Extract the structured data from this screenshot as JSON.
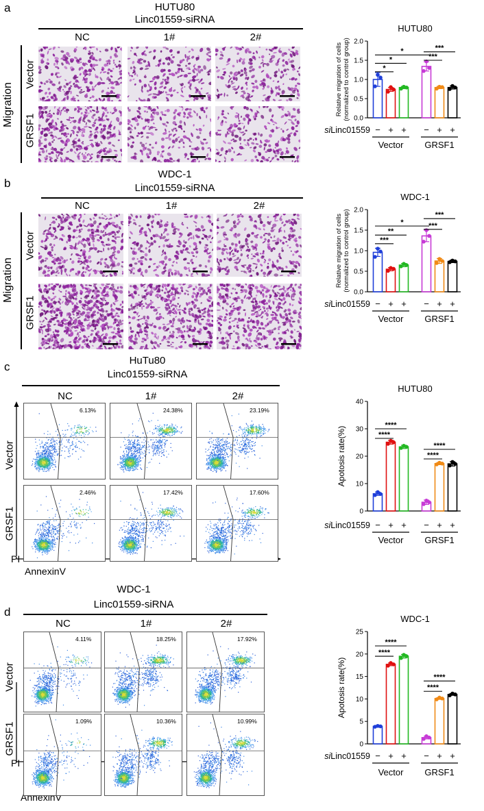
{
  "panels": [
    {
      "letter": "a",
      "title": "HUTU80",
      "subtitle": "Linc01559-siRNA",
      "assay_label": "Migration",
      "columns": [
        "NC",
        "1#",
        "2#"
      ],
      "rows": [
        "Vector",
        "GRSF1"
      ]
    },
    {
      "letter": "b",
      "title": "WDC-1",
      "subtitle": "Linc01559-siRNA",
      "assay_label": "Migration",
      "columns": [
        "NC",
        "1#",
        "2#"
      ],
      "rows": [
        "Vector",
        "GRSF1"
      ]
    },
    {
      "letter": "c",
      "title": "HuTu80",
      "subtitle": "Linc01559-siRNA",
      "columns": [
        "NC",
        "1#",
        "2#"
      ],
      "rows": [
        "Vector",
        "GRSF1"
      ],
      "y_axis_label": "PI",
      "x_axis_label": "AnnexinV",
      "percentages": [
        [
          "6.13%",
          "24.38%",
          "23.19%"
        ],
        [
          "2.46%",
          "17.42%",
          "17.60%"
        ]
      ]
    },
    {
      "letter": "d",
      "title": "WDC-1",
      "subtitle": "Linc01559-siRNA",
      "columns": [
        "NC",
        "1#",
        "2#"
      ],
      "rows": [
        "Vector",
        "GRSF1"
      ],
      "y_axis_label": "PI",
      "x_axis_label": "AnnexinV",
      "percentages": [
        [
          "4.11%",
          "18.25%",
          "17.92%"
        ],
        [
          "1.09%",
          "10.36%",
          "10.99%"
        ]
      ]
    }
  ],
  "colors": {
    "blue": "#1f3fd9",
    "red": "#e01010",
    "green": "#22b822",
    "magenta": "#c73ad6",
    "orange": "#f08a16",
    "black": "#000000",
    "stain": "#9b2fa6"
  },
  "chart_data": [
    {
      "type": "bar",
      "title": "HUTU80",
      "ylabel": "Relative migration of cells\n(normalized to control group)",
      "ylim": [
        0,
        2.0
      ],
      "yticks": [
        "0.0",
        "0.5",
        "1.0",
        "1.5",
        "2.0"
      ],
      "row_label": "siLinc01559",
      "row_label_prefix": "si",
      "row_label_rest": "Linc01559",
      "row_signs": [
        "−",
        "+",
        "+",
        "−",
        "+",
        "+"
      ],
      "groups": [
        "Vector",
        "GRSF1"
      ],
      "values": [
        1.0,
        0.74,
        0.79,
        1.34,
        0.79,
        0.79
      ],
      "errors": [
        0.18,
        0.05,
        0.03,
        0.12,
        0.03,
        0.04
      ],
      "points": [
        [
          0.82,
          1.12,
          1.05
        ],
        [
          0.68,
          0.8,
          0.74
        ],
        [
          0.76,
          0.81,
          0.79
        ],
        [
          1.22,
          1.47,
          1.3
        ],
        [
          0.76,
          0.81,
          0.8
        ],
        [
          0.75,
          0.83,
          0.79
        ]
      ],
      "significance": [
        {
          "from": 0,
          "to": 1,
          "y": 1.2,
          "label": "*"
        },
        {
          "from": 0,
          "to": 2,
          "y": 1.42,
          "label": "*"
        },
        {
          "from": 0,
          "to": 3,
          "y": 1.64,
          "label": "*"
        },
        {
          "from": 3,
          "to": 4,
          "y": 1.5,
          "label": "***"
        },
        {
          "from": 3,
          "to": 5,
          "y": 1.72,
          "label": "***"
        }
      ]
    },
    {
      "type": "bar",
      "title": "WDC-1",
      "ylabel": "Relative migration of cells\n(normalized to control group)",
      "ylim": [
        0,
        2.0
      ],
      "yticks": [
        "0.0",
        "0.5",
        "1.0",
        "1.5",
        "2.0"
      ],
      "row_label": "siLinc01559",
      "row_label_prefix": "si",
      "row_label_rest": "Linc01559",
      "row_signs": [
        "−",
        "+",
        "+",
        "−",
        "+",
        "+"
      ],
      "groups": [
        "Vector",
        "GRSF1"
      ],
      "values": [
        0.96,
        0.55,
        0.65,
        1.36,
        0.75,
        0.74
      ],
      "errors": [
        0.1,
        0.04,
        0.04,
        0.14,
        0.06,
        0.03
      ],
      "points": [
        [
          0.85,
          1.05,
          0.98
        ],
        [
          0.51,
          0.58,
          0.56
        ],
        [
          0.62,
          0.68,
          0.65
        ],
        [
          1.22,
          1.5,
          1.36
        ],
        [
          0.7,
          0.8,
          0.75
        ],
        [
          0.72,
          0.76,
          0.74
        ]
      ],
      "significance": [
        {
          "from": 0,
          "to": 1,
          "y": 1.17,
          "label": "***"
        },
        {
          "from": 0,
          "to": 2,
          "y": 1.38,
          "label": "**"
        },
        {
          "from": 0,
          "to": 3,
          "y": 1.6,
          "label": "*"
        },
        {
          "from": 3,
          "to": 4,
          "y": 1.52,
          "label": "***"
        },
        {
          "from": 3,
          "to": 5,
          "y": 1.78,
          "label": "***"
        }
      ]
    },
    {
      "type": "bar",
      "title": "HUTU80",
      "ylabel": "Apotosis rate(%)",
      "ylim": [
        0,
        40
      ],
      "yticks": [
        "0",
        "10",
        "20",
        "30",
        "40"
      ],
      "row_label": "siLinc01559",
      "row_label_prefix": "si",
      "row_label_rest": "Linc01559",
      "row_signs": [
        "−",
        "+",
        "+",
        "−",
        "+",
        "+"
      ],
      "groups": [
        "Vector",
        "GRSF1"
      ],
      "values": [
        6.3,
        25.1,
        23.4,
        3.2,
        17.3,
        17.2
      ],
      "errors": [
        0.6,
        0.7,
        0.6,
        0.8,
        0.4,
        0.8
      ],
      "points": [
        [
          5.8,
          6.9,
          6.2
        ],
        [
          24.5,
          25.6,
          25.1
        ],
        [
          23.0,
          23.8,
          23.4
        ],
        [
          2.5,
          3.8,
          3.2
        ],
        [
          17.0,
          17.6,
          17.3
        ],
        [
          16.6,
          17.9,
          17.2
        ]
      ],
      "significance": [
        {
          "from": 0,
          "to": 1,
          "y": 26.5,
          "label": "****"
        },
        {
          "from": 0,
          "to": 2,
          "y": 30.0,
          "label": "****"
        },
        {
          "from": 3,
          "to": 4,
          "y": 19.0,
          "label": "****"
        },
        {
          "from": 3,
          "to": 5,
          "y": 22.5,
          "label": "****"
        }
      ]
    },
    {
      "type": "bar",
      "title": "WDC-1",
      "ylabel": "Apotosis rate(%)",
      "ylim": [
        0,
        25
      ],
      "yticks": [
        "0",
        "5",
        "10",
        "15",
        "20",
        "25"
      ],
      "row_label": "siLinc01559",
      "row_label_prefix": "si",
      "row_label_rest": "Linc01559",
      "row_signs": [
        "−",
        "+",
        "+",
        "−",
        "+",
        "+"
      ],
      "groups": [
        "Vector",
        "GRSF1"
      ],
      "values": [
        3.9,
        17.7,
        19.5,
        1.4,
        10.1,
        11.0
      ],
      "errors": [
        0.2,
        0.3,
        0.4,
        0.3,
        0.2,
        0.2
      ],
      "points": [
        [
          3.8,
          4.0,
          3.9
        ],
        [
          17.4,
          18.0,
          17.7
        ],
        [
          19.1,
          19.8,
          19.5
        ],
        [
          1.1,
          1.7,
          1.4
        ],
        [
          9.9,
          10.3,
          10.1
        ],
        [
          10.8,
          11.2,
          11.0
        ]
      ],
      "significance": [
        {
          "from": 0,
          "to": 1,
          "y": 19.5,
          "label": "****"
        },
        {
          "from": 0,
          "to": 2,
          "y": 21.8,
          "label": "****"
        },
        {
          "from": 3,
          "to": 4,
          "y": 11.7,
          "label": "****"
        },
        {
          "from": 3,
          "to": 5,
          "y": 14.0,
          "label": "****"
        }
      ]
    }
  ]
}
